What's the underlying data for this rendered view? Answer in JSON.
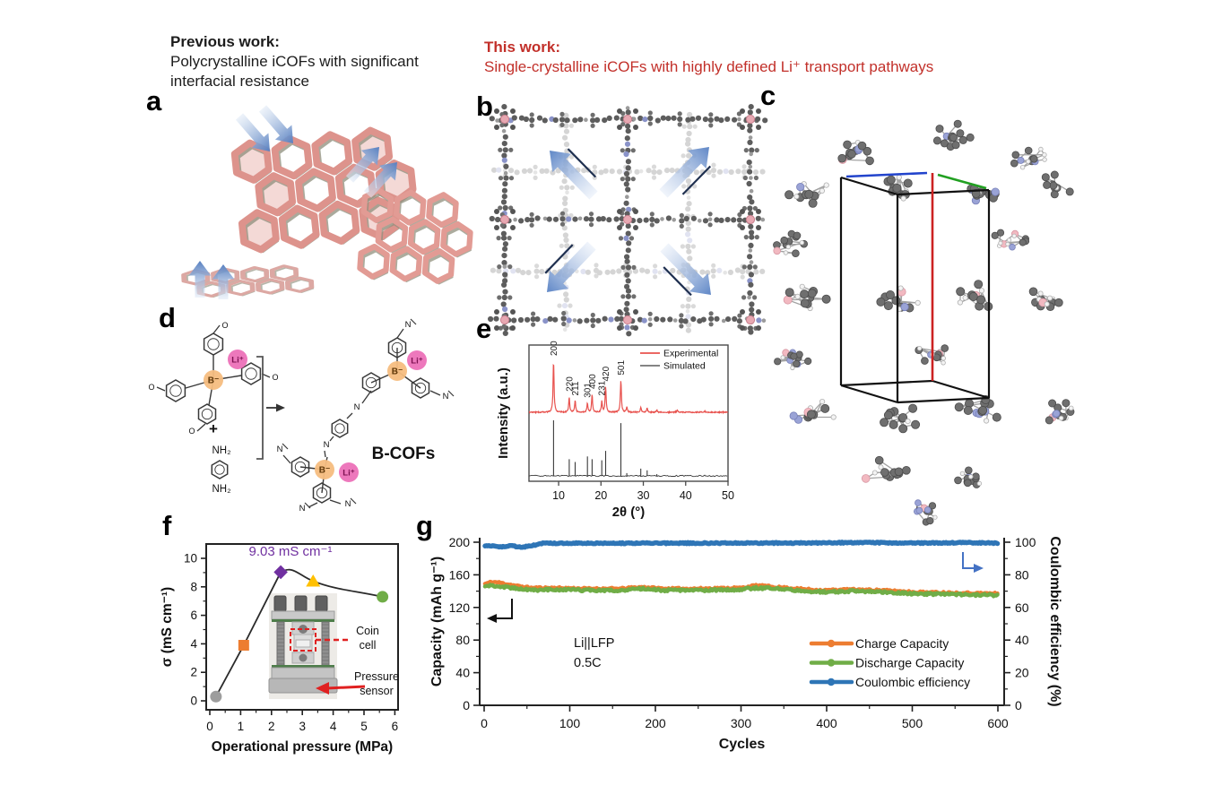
{
  "header": {
    "previous_title": "Previous work:",
    "previous_line1": "Polycrystalline iCOFs with significant",
    "previous_line2": "interfacial resistance",
    "this_title": "This work:",
    "this_line": "Single-crystalline iCOFs with highly defined Li⁺ transport pathways",
    "this_color": "#c2302a"
  },
  "panel_labels": {
    "a": "a",
    "b": "b",
    "c": "c",
    "d": "d",
    "e": "e",
    "f": "f",
    "g": "g"
  },
  "scheme": {
    "boron_label": "B⁻",
    "lithium_label": "Li⁺",
    "plus_sign": "+",
    "amine_top": "NH₂",
    "amine_bottom": "NH₂",
    "oxygen_label": "O",
    "nitrogen_label": "N",
    "product_label": "B-COFs"
  },
  "chart_data": [
    {
      "id": "xrd",
      "type": "line",
      "xlabel": "2θ (°)",
      "ylabel": "Intensity (a.u.)",
      "xlim": [
        3,
        50
      ],
      "xticks": [
        10,
        20,
        30,
        40,
        50
      ],
      "legend": [
        {
          "label": "Experimental",
          "color": "#e8524e"
        },
        {
          "label": "Simulated",
          "color": "#3a3a3a"
        }
      ],
      "peaks": [
        {
          "two_theta": 8.8,
          "exp": 1.0,
          "sim": 1.0,
          "hkl": "200"
        },
        {
          "two_theta": 12.5,
          "exp": 0.3,
          "sim": 0.3,
          "hkl": "220"
        },
        {
          "two_theta": 13.9,
          "exp": 0.22,
          "sim": 0.25,
          "hkl": "211"
        },
        {
          "two_theta": 16.8,
          "exp": 0.18,
          "sim": 0.35,
          "hkl": "301"
        },
        {
          "two_theta": 17.9,
          "exp": 0.35,
          "sim": 0.3,
          "hkl": "400"
        },
        {
          "two_theta": 20.2,
          "exp": 0.22,
          "sim": 0.28,
          "hkl": "231"
        },
        {
          "two_theta": 21.1,
          "exp": 0.5,
          "sim": 0.45,
          "hkl": "420"
        },
        {
          "two_theta": 24.7,
          "exp": 0.62,
          "sim": 0.95,
          "hkl": "501"
        },
        {
          "two_theta": 26.1,
          "exp": 0.1,
          "sim": 0.05,
          "hkl": ""
        },
        {
          "two_theta": 29.4,
          "exp": 0.1,
          "sim": 0.13,
          "hkl": ""
        },
        {
          "two_theta": 30.9,
          "exp": 0.08,
          "sim": 0.1,
          "hkl": ""
        },
        {
          "two_theta": 33.2,
          "exp": 0.04,
          "sim": 0.03,
          "hkl": ""
        },
        {
          "two_theta": 38.0,
          "exp": 0.05,
          "sim": 0.0,
          "hkl": ""
        },
        {
          "two_theta": 44.5,
          "exp": 0.03,
          "sim": 0.02,
          "hkl": ""
        }
      ]
    },
    {
      "id": "conductivity",
      "type": "scatter",
      "xlabel": "Operational pressure (MPa)",
      "ylabel": "σ (mS cm⁻¹)",
      "xlim": [
        0,
        6
      ],
      "ylim": [
        0,
        10
      ],
      "xticks": [
        0,
        1,
        2,
        3,
        4,
        5,
        6
      ],
      "yticks": [
        0,
        2,
        4,
        6,
        8,
        10
      ],
      "annotation": {
        "text": "9.03 mS cm⁻¹",
        "color": "#7030a0"
      },
      "points": [
        {
          "x": 0.2,
          "y": 0.3,
          "marker": "circle",
          "color": "#9d9d9d"
        },
        {
          "x": 1.1,
          "y": 3.9,
          "marker": "square",
          "color": "#ed7d31"
        },
        {
          "x": 2.3,
          "y": 9.03,
          "marker": "diamond",
          "color": "#7030a0"
        },
        {
          "x": 3.35,
          "y": 8.4,
          "marker": "triangle",
          "color": "#ffc000"
        },
        {
          "x": 5.6,
          "y": 7.3,
          "marker": "circle",
          "color": "#70ad47"
        }
      ],
      "inset": {
        "label_coin_line1": "Coin",
        "label_coin_line2": "cell",
        "label_sensor_line1": "Pressure",
        "label_sensor_line2": "sensor"
      }
    },
    {
      "id": "cycling",
      "type": "line",
      "xlabel": "Cycles",
      "ylabel_left": "Capacity (mAh g⁻¹)",
      "ylabel_right": "Coulombic efficiency (%)",
      "xlim": [
        0,
        600
      ],
      "ylim_left": [
        0,
        200
      ],
      "ylim_right": [
        0,
        100
      ],
      "xticks": [
        0,
        100,
        200,
        300,
        400,
        500,
        600
      ],
      "yticks_left": [
        0,
        40,
        80,
        120,
        160,
        200
      ],
      "yticks_right": [
        0,
        20,
        40,
        60,
        80,
        100
      ],
      "annotation_line1": "Li||LFP",
      "annotation_line2": "0.5C",
      "series": [
        {
          "name": "Charge Capacity",
          "color": "#ed7d31",
          "axis": "left",
          "noise": 1.1,
          "keypoints": [
            [
              1,
              149
            ],
            [
              8,
              151
            ],
            [
              15,
              151
            ],
            [
              25,
              149
            ],
            [
              40,
              146
            ],
            [
              55,
              144
            ],
            [
              80,
              144
            ],
            [
              120,
              143
            ],
            [
              160,
              143
            ],
            [
              185,
              145
            ],
            [
              210,
              143
            ],
            [
              250,
              143
            ],
            [
              300,
              144
            ],
            [
              318,
              147
            ],
            [
              340,
              145
            ],
            [
              365,
              143
            ],
            [
              395,
              141
            ],
            [
              430,
              142
            ],
            [
              465,
              141
            ],
            [
              500,
              139
            ],
            [
              545,
              138
            ],
            [
              600,
              137
            ]
          ]
        },
        {
          "name": "Discharge Capacity",
          "color": "#70ad47",
          "axis": "left",
          "noise": 1.4,
          "keypoints": [
            [
              1,
              146
            ],
            [
              8,
              147
            ],
            [
              15,
              146
            ],
            [
              25,
              145
            ],
            [
              40,
              143
            ],
            [
              55,
              141
            ],
            [
              80,
              142
            ],
            [
              120,
              141
            ],
            [
              160,
              141
            ],
            [
              185,
              143
            ],
            [
              210,
              141
            ],
            [
              250,
              141
            ],
            [
              300,
              142
            ],
            [
              318,
              144
            ],
            [
              340,
              143
            ],
            [
              365,
              141
            ],
            [
              395,
              139
            ],
            [
              430,
              140
            ],
            [
              465,
              139
            ],
            [
              500,
              137
            ],
            [
              545,
              136
            ],
            [
              600,
              135
            ]
          ]
        },
        {
          "name": "Coulombic efficiency",
          "color": "#2e75b6",
          "axis": "right",
          "noise": 0.35,
          "keypoints": [
            [
              1,
              97.6
            ],
            [
              10,
              97.9
            ],
            [
              20,
              97.2
            ],
            [
              32,
              97.7
            ],
            [
              45,
              97.0
            ],
            [
              58,
              98.1
            ],
            [
              70,
              99.4
            ],
            [
              120,
              99.4
            ],
            [
              200,
              99.4
            ],
            [
              300,
              99.5
            ],
            [
              380,
              99.5
            ],
            [
              440,
              99.8
            ],
            [
              500,
              99.5
            ],
            [
              565,
              99.7
            ],
            [
              600,
              99.4
            ]
          ]
        }
      ]
    }
  ]
}
